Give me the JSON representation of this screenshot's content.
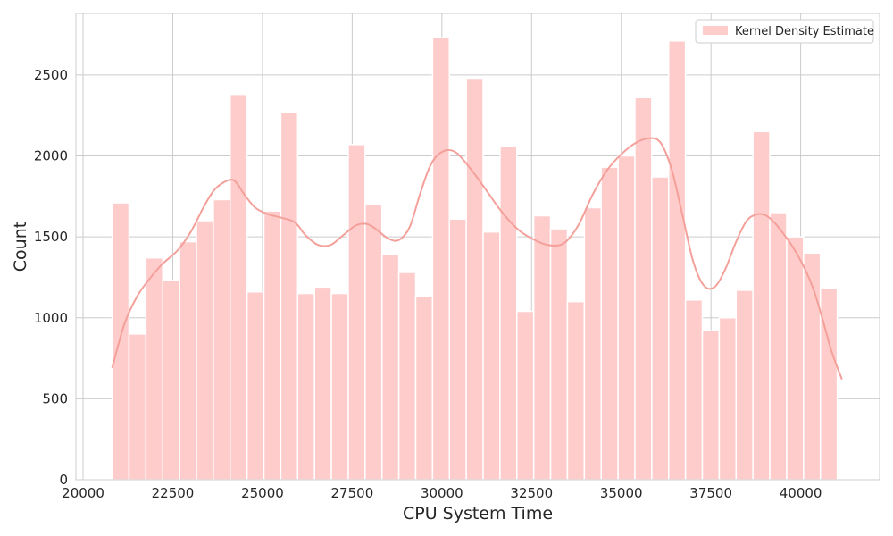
{
  "chart_data": {
    "type": "bar",
    "subtype": "histogram_with_kde",
    "xlabel": "CPU System Time",
    "ylabel": "Count",
    "xlim": [
      19800,
      42200
    ],
    "ylim": [
      0,
      2880
    ],
    "xticks": [
      20000,
      22500,
      25000,
      27500,
      30000,
      32500,
      35000,
      37500,
      40000
    ],
    "yticks": [
      0,
      500,
      1000,
      1500,
      2000,
      2500
    ],
    "grid": true,
    "legend_position": "top-right",
    "legend": [
      "Kernel Density Estimate"
    ],
    "colors": {
      "bar_fill": "#ffcccc",
      "bar_edge": "#ffffff",
      "kde_line": "#f4a09a",
      "grid": "#cccccc",
      "spine": "#cccccc"
    },
    "bin_start": 20810,
    "bin_width": 470,
    "values": [
      1710,
      900,
      1370,
      1230,
      1470,
      1600,
      1730,
      2380,
      1160,
      1660,
      2270,
      1150,
      1190,
      1150,
      2070,
      1700,
      1390,
      1280,
      1130,
      2730,
      1610,
      2480,
      1530,
      2060,
      1040,
      1630,
      1550,
      1100,
      1680,
      1930,
      2000,
      2360,
      1870,
      2710,
      1110,
      920,
      1000,
      1170,
      2150,
      1650,
      1500,
      1400,
      1180
    ],
    "kde": {
      "name": "Kernel Density Estimate",
      "x": [
        20810,
        21150,
        21500,
        21850,
        22200,
        22650,
        23000,
        23400,
        23700,
        24050,
        24250,
        24500,
        24800,
        25150,
        25500,
        25900,
        26200,
        26550,
        26900,
        27250,
        27600,
        27900,
        28150,
        28500,
        28800,
        29100,
        29400,
        29700,
        30050,
        30400,
        30800,
        31200,
        31650,
        32100,
        32500,
        32950,
        33400,
        33800,
        34200,
        34600,
        35000,
        35400,
        35800,
        36100,
        36400,
        36700,
        37000,
        37300,
        37600,
        37900,
        38200,
        38500,
        38800,
        39050,
        39300,
        39550,
        39800,
        40100,
        40350,
        40600,
        40850,
        41150
      ],
      "y": [
        690,
        960,
        1130,
        1240,
        1330,
        1420,
        1530,
        1700,
        1800,
        1850,
        1840,
        1760,
        1680,
        1640,
        1620,
        1590,
        1510,
        1450,
        1450,
        1510,
        1570,
        1580,
        1550,
        1490,
        1480,
        1560,
        1770,
        1950,
        2030,
        2020,
        1920,
        1800,
        1660,
        1550,
        1490,
        1450,
        1460,
        1570,
        1760,
        1910,
        2010,
        2080,
        2110,
        2080,
        1920,
        1640,
        1350,
        1200,
        1190,
        1300,
        1470,
        1600,
        1640,
        1630,
        1580,
        1510,
        1430,
        1310,
        1180,
        1000,
        800,
        620
      ]
    }
  }
}
